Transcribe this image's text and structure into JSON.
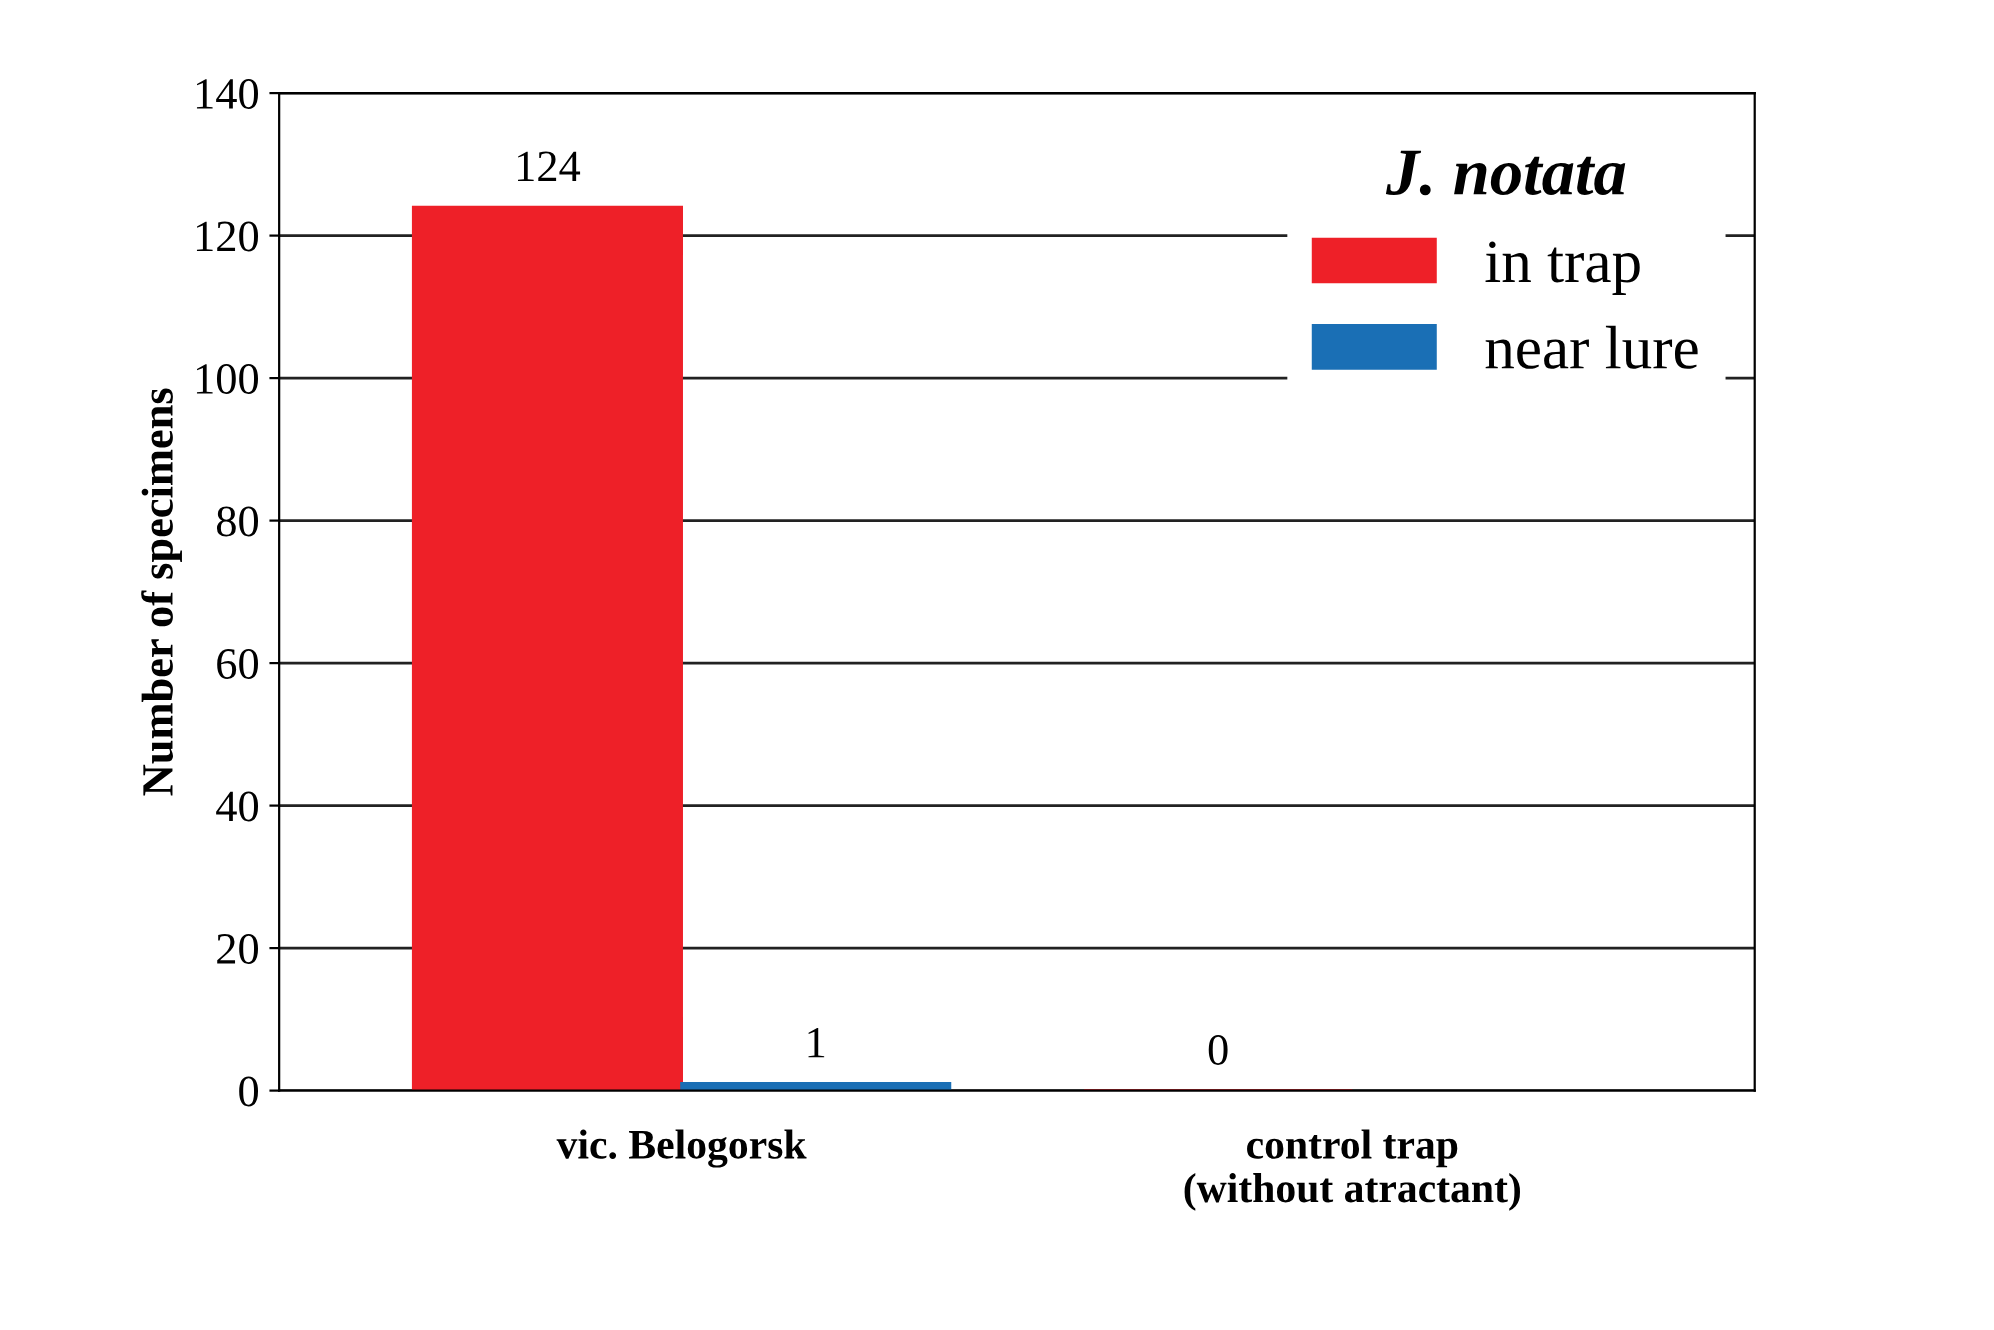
{
  "chart_data": {
    "type": "bar",
    "ylabel": "Number of specimens",
    "legend_title": "J. notata",
    "categories": [
      "vic. Belogorsk",
      "control trap\n(without atractant)"
    ],
    "series": [
      {
        "name": "in trap",
        "color": "#ee2028",
        "values": [
          124,
          0
        ]
      },
      {
        "name": "near lure",
        "color": "#1a6fb5",
        "values": [
          1,
          null
        ]
      }
    ],
    "ylim": [
      0,
      140
    ],
    "yticks": [
      0,
      20,
      40,
      60,
      80,
      100,
      120,
      140
    ],
    "grid": "y",
    "legend": "top right",
    "data_labels": true
  }
}
